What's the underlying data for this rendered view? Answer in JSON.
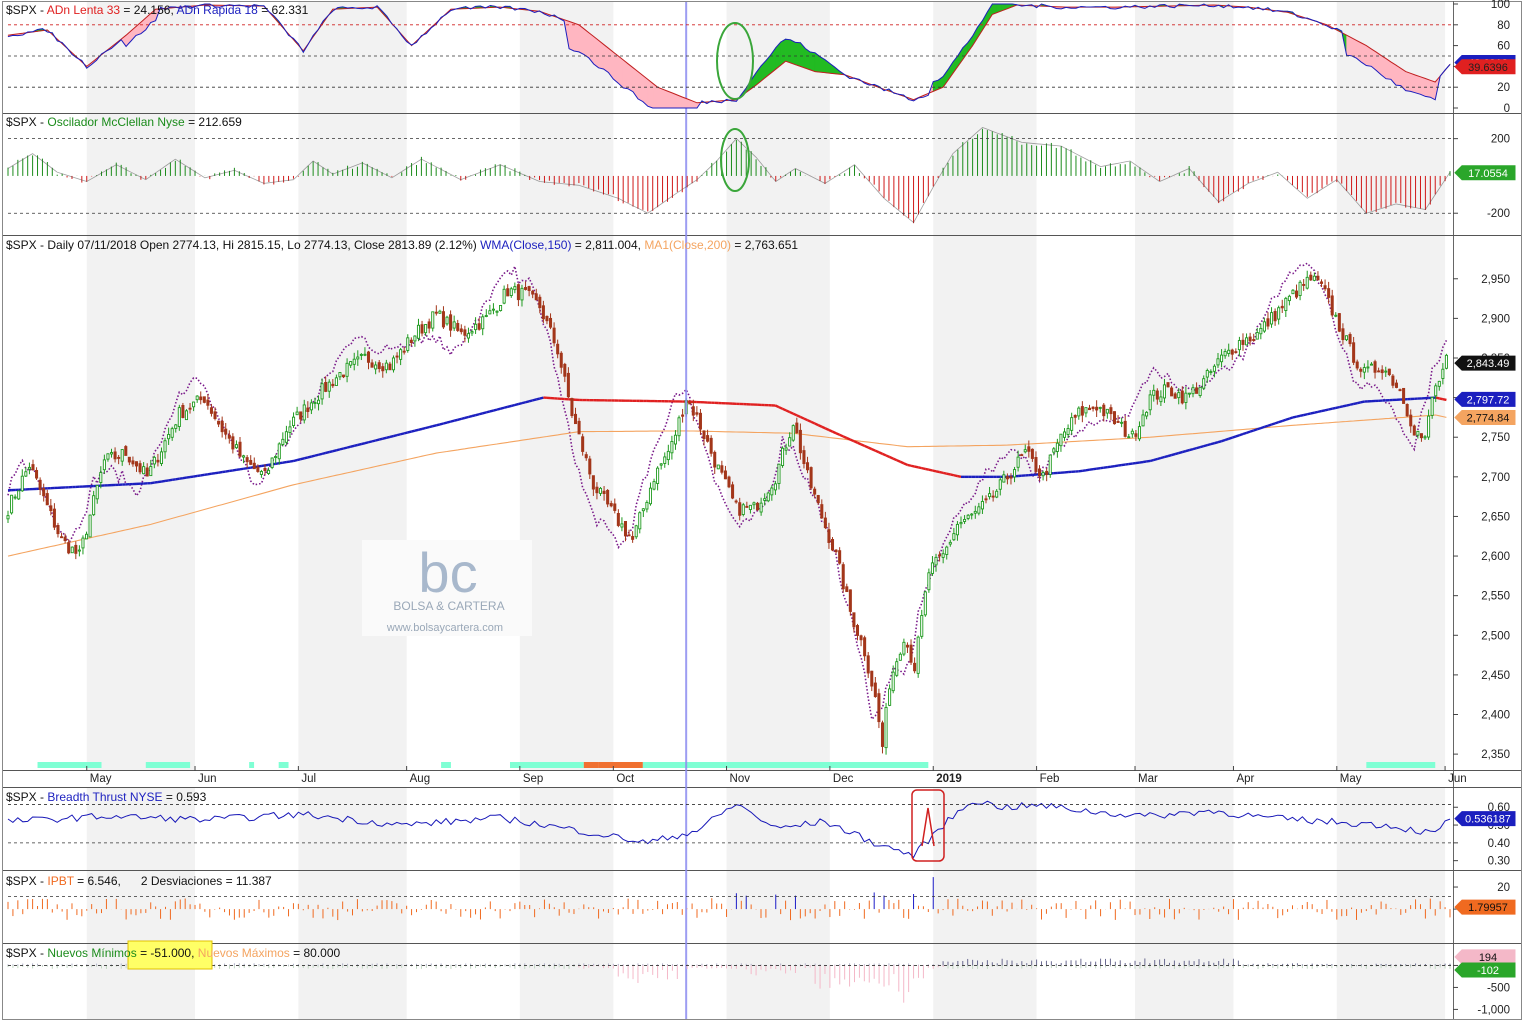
{
  "colors": {
    "up_candle": "#1f9a1f",
    "down_candle": "#a3361a",
    "wma_up": "#1b1fbf",
    "wma_down": "#e02020",
    "ma200": "#f4a460",
    "adn_red_fill": "#ffb6c1",
    "adn_green_fill": "#22bb22",
    "mcclellan_pos": "#1c8c1c",
    "mcclellan_neg": "#d01818",
    "breadth_line": "#1818b8",
    "ipbt_bar": "#f06a20",
    "ipbt_highlight": "#1c1cc8",
    "highlight_circle": "#3aa63a",
    "highlight_box": "#d02020",
    "marker_line": "#8c8cf0",
    "weekday_band": "#7fffd4",
    "weekday_band_alt": "#f07030",
    "yellow_highlight": "#ffff66"
  },
  "chart_data": [
    {
      "id": "adn",
      "type": "area",
      "header": {
        "prefix": "$SPX - ",
        "s1_label": "ADn Lenta 33",
        "s1_value": " = 24.156, ",
        "s2_label": "ADn Rapida 18",
        "s2_value": " = 62.331"
      },
      "ylim": [
        0,
        100
      ],
      "ticks": [
        "100",
        "80",
        "60",
        "40",
        "20",
        "0"
      ],
      "tick_values": [
        100,
        80,
        60,
        40,
        20,
        0
      ],
      "guides": [
        80,
        50,
        20
      ],
      "last_labels": [
        "43.6913",
        "39.6396"
      ],
      "last_values": [
        43.69,
        39.64
      ],
      "series": [
        {
          "name": "ADn Lenta 33"
        },
        {
          "name": "ADn Rapida 18"
        }
      ]
    },
    {
      "id": "mcclellan",
      "type": "bar",
      "header": {
        "prefix": "$SPX - ",
        "s1_label": "Oscilador McClellan Nyse",
        "s1_value": " = 212.659"
      },
      "ylim": [
        -290,
        300
      ],
      "ticks": [
        "200",
        "-200"
      ],
      "tick_values": [
        200,
        -200
      ],
      "guides": [
        200,
        -200
      ],
      "last_labels": [
        "17.0554"
      ],
      "last_values": [
        17.06
      ]
    },
    {
      "id": "price",
      "type": "candlestick",
      "header": {
        "prefix": "$SPX - Daily 07/11/2018 Open 2774.13, Hi 2815.15, Lo 2774.13, Close 2813.89 (2.12%) ",
        "s1_label": "WMA(Close,150)",
        "s1_value": " = 2,811.004, ",
        "s2_label": "MA1(Close,200)",
        "s2_value": " = 2,763.651"
      },
      "ylim": [
        2335,
        2980
      ],
      "ticks": [
        "2,950",
        "2,900",
        "2,850",
        "2,800",
        "2,750",
        "2,700",
        "2,650",
        "2,600",
        "2,550",
        "2,500",
        "2,450",
        "2,400",
        "2,350"
      ],
      "tick_values": [
        2950,
        2900,
        2850,
        2800,
        2750,
        2700,
        2650,
        2600,
        2550,
        2500,
        2450,
        2400,
        2350
      ],
      "last_labels": [
        "2,843.49",
        "2,797.72",
        "2,774.84"
      ],
      "last_values": [
        2843.49,
        2797.72,
        2774.84
      ],
      "close_anchors": [
        [
          0,
          2660
        ],
        [
          6,
          2715
        ],
        [
          15,
          2620
        ],
        [
          20,
          2600
        ],
        [
          27,
          2720
        ],
        [
          33,
          2730
        ],
        [
          39,
          2700
        ],
        [
          48,
          2780
        ],
        [
          55,
          2800
        ],
        [
          60,
          2760
        ],
        [
          66,
          2720
        ],
        [
          72,
          2700
        ],
        [
          78,
          2760
        ],
        [
          86,
          2800
        ],
        [
          93,
          2830
        ],
        [
          100,
          2850
        ],
        [
          107,
          2840
        ],
        [
          114,
          2880
        ],
        [
          120,
          2905
        ],
        [
          127,
          2880
        ],
        [
          134,
          2900
        ],
        [
          140,
          2935
        ],
        [
          145,
          2930
        ],
        [
          149,
          2915
        ],
        [
          154,
          2860
        ],
        [
          158,
          2780
        ],
        [
          164,
          2690
        ],
        [
          170,
          2650
        ],
        [
          175,
          2620
        ],
        [
          181,
          2700
        ],
        [
          186,
          2740
        ],
        [
          190,
          2800
        ],
        [
          193,
          2775
        ],
        [
          198,
          2720
        ],
        [
          204,
          2660
        ],
        [
          209,
          2660
        ],
        [
          215,
          2700
        ],
        [
          220,
          2770
        ],
        [
          224,
          2700
        ],
        [
          228,
          2650
        ],
        [
          232,
          2600
        ],
        [
          236,
          2530
        ],
        [
          240,
          2480
        ],
        [
          243,
          2420
        ],
        [
          245,
          2360
        ],
        [
          247,
          2440
        ],
        [
          251,
          2500
        ],
        [
          254,
          2460
        ],
        [
          258,
          2580
        ],
        [
          262,
          2600
        ],
        [
          266,
          2640
        ],
        [
          270,
          2650
        ],
        [
          275,
          2670
        ],
        [
          280,
          2700
        ],
        [
          285,
          2730
        ],
        [
          290,
          2700
        ],
        [
          295,
          2750
        ],
        [
          300,
          2780
        ],
        [
          305,
          2790
        ],
        [
          310,
          2770
        ],
        [
          315,
          2750
        ],
        [
          320,
          2800
        ],
        [
          325,
          2810
        ],
        [
          330,
          2800
        ],
        [
          335,
          2820
        ],
        [
          340,
          2850
        ],
        [
          345,
          2870
        ],
        [
          350,
          2880
        ],
        [
          355,
          2905
        ],
        [
          360,
          2930
        ],
        [
          365,
          2950
        ],
        [
          368,
          2940
        ],
        [
          372,
          2900
        ],
        [
          376,
          2860
        ],
        [
          380,
          2830
        ],
        [
          385,
          2840
        ],
        [
          390,
          2810
        ],
        [
          394,
          2760
        ],
        [
          397,
          2745
        ],
        [
          399,
          2800
        ],
        [
          403,
          2845
        ]
      ],
      "wma_anchors": [
        [
          0,
          2683
        ],
        [
          40,
          2692
        ],
        [
          80,
          2720
        ],
        [
          120,
          2765
        ],
        [
          150,
          2800
        ],
        [
          160,
          2797
        ],
        [
          190,
          2795
        ],
        [
          215,
          2790
        ],
        [
          232,
          2755
        ],
        [
          252,
          2715
        ],
        [
          267,
          2700
        ],
        [
          280,
          2700
        ],
        [
          300,
          2707
        ],
        [
          320,
          2720
        ],
        [
          340,
          2745
        ],
        [
          360,
          2775
        ],
        [
          380,
          2795
        ],
        [
          400,
          2800
        ],
        [
          403,
          2797
        ]
      ],
      "ma200_anchors": [
        [
          0,
          2600
        ],
        [
          40,
          2640
        ],
        [
          80,
          2690
        ],
        [
          120,
          2730
        ],
        [
          160,
          2757
        ],
        [
          190,
          2758
        ],
        [
          220,
          2755
        ],
        [
          252,
          2738
        ],
        [
          280,
          2740
        ],
        [
          320,
          2750
        ],
        [
          360,
          2765
        ],
        [
          400,
          2778
        ],
        [
          403,
          2775
        ]
      ],
      "marker_index": 190
    },
    {
      "id": "breadth",
      "type": "line",
      "header": {
        "prefix": "$SPX - ",
        "s1_label": "Breadth Thrust NYSE",
        "s1_value": " = 0.593"
      },
      "ylim": [
        0.27,
        0.68
      ],
      "ticks": [
        "0.60",
        "0.50",
        "0.40",
        "0.30"
      ],
      "tick_values": [
        0.6,
        0.5,
        0.4,
        0.3
      ],
      "guides": [
        0.615,
        0.4
      ],
      "last_labels": [
        "0.536187"
      ],
      "last_values": [
        0.536
      ]
    },
    {
      "id": "ipbt",
      "type": "bar",
      "header": {
        "prefix": "$SPX - ",
        "s1_label": "IPBT",
        "s1_value": " = 6.546,      2 Desviaciones = 11.387"
      },
      "ylim": [
        -28,
        30
      ],
      "ticks": [
        "20",
        "0"
      ],
      "tick_values": [
        20,
        0
      ],
      "guides": [
        11.4
      ],
      "last_labels": [
        "1.79957"
      ],
      "last_values": [
        1.8
      ]
    },
    {
      "id": "nuevos",
      "type": "bar",
      "header": {
        "prefix": "$SPX - ",
        "s1_label": "Nuevos Mínimos",
        "s1_value": " = -51.000, ",
        "s2_label": "Nuevos Máximos",
        "s2_value": " = 80.000"
      },
      "ylim": [
        -1150,
        420
      ],
      "ticks": [
        "0",
        "-500",
        "-1,000"
      ],
      "tick_values": [
        0,
        -500,
        -1000
      ],
      "last_labels": [
        "194",
        "-102"
      ],
      "last_values": [
        194,
        -102
      ]
    }
  ],
  "time_axis": {
    "months": [
      {
        "label": "May",
        "i": 16
      },
      {
        "label": "Jun",
        "i": 38
      },
      {
        "label": "Jul",
        "i": 59
      },
      {
        "label": "Aug",
        "i": 81
      },
      {
        "label": "Sep",
        "i": 104
      },
      {
        "label": "Oct",
        "i": 123
      },
      {
        "label": "Nov",
        "i": 146
      },
      {
        "label": "Dec",
        "i": 167
      },
      {
        "label": "2019",
        "i": 188
      },
      {
        "label": "Feb",
        "i": 209
      },
      {
        "label": "Mar",
        "i": 229
      },
      {
        "label": "Apr",
        "i": 249
      },
      {
        "label": "May",
        "i": 270
      },
      {
        "label": "Jun",
        "i": 292
      }
    ],
    "month_starts": [
      0,
      16,
      38,
      59,
      81,
      104,
      123,
      146,
      167,
      188,
      209,
      229,
      249,
      270,
      292,
      293
    ]
  },
  "watermark": {
    "logo": "bc",
    "name": "BOLSA & CARTERA",
    "url": "www.bolsaycartera.com"
  }
}
